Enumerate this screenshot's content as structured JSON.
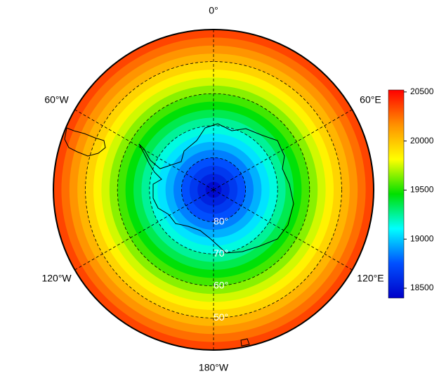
{
  "map": {
    "projection": "south-polar",
    "boundary_lat": -40,
    "meridians": [
      {
        "lon": 0,
        "label": "0°"
      },
      {
        "lon": 60,
        "label": "60°E"
      },
      {
        "lon": 120,
        "label": "120°E"
      },
      {
        "lon": 180,
        "label": "180°W"
      },
      {
        "lon": -120,
        "label": "120°W"
      },
      {
        "lon": -60,
        "label": "60°W"
      }
    ],
    "parallels": [
      {
        "lat": -80,
        "label": "80°"
      },
      {
        "lat": -70,
        "label": "70°"
      },
      {
        "lat": -60,
        "label": "60°"
      },
      {
        "lat": -50,
        "label": "50°"
      }
    ],
    "bands": {
      "outer_lat": [
        -87.5,
        -85,
        -82.5,
        -80,
        -77.5,
        -75,
        -72.5,
        -70,
        -67.5,
        -65,
        -62.5,
        -60,
        -57.5,
        -55,
        -52.5,
        -50,
        -47.5,
        -45,
        -42.5,
        -40
      ],
      "values": [
        18450,
        18550,
        18650,
        18750,
        18850,
        18950,
        19050,
        19150,
        19250,
        19350,
        19450,
        19550,
        19650,
        19750,
        19850,
        19950,
        20050,
        20150,
        20250,
        20350
      ]
    },
    "colorbar": {
      "lim": [
        18400,
        20520
      ],
      "ticks": [
        18500,
        19000,
        19500,
        20000,
        20500
      ],
      "colors": [
        "#0000c8",
        "#0050ff",
        "#00ffff",
        "#00e000",
        "#ffff00",
        "#ff9000",
        "#ff0000"
      ]
    }
  }
}
